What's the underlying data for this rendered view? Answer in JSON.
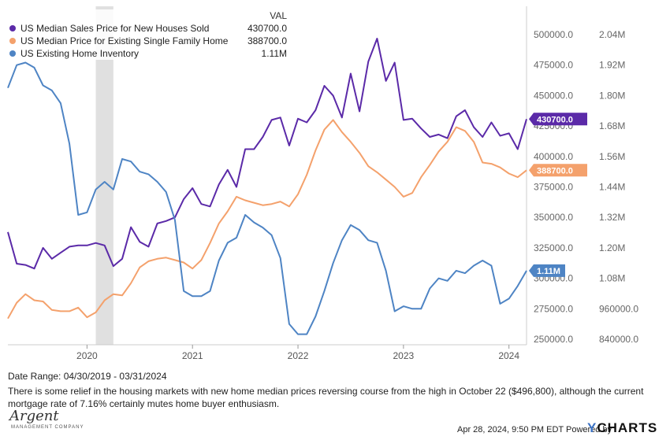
{
  "chart_data": {
    "type": "line",
    "legend": {
      "header": "VAL",
      "placement": "top-left",
      "entries": [
        {
          "name": "US Median Sales Price for New Houses Sold",
          "value": "430700.0",
          "color": "#5b2aa8"
        },
        {
          "name": "US Median Price for Existing Single Family Home",
          "value": "388700.0",
          "color": "#f4a16c"
        },
        {
          "name": "US Existing Home Inventory",
          "value": "1.11M",
          "color": "#4e84c4"
        }
      ]
    },
    "x_ticks": [
      "2020",
      "2021",
      "2022",
      "2023",
      "2024"
    ],
    "x_range": [
      "2019-04",
      "2024-03"
    ],
    "y_left": {
      "min": 250000,
      "max": 500000,
      "ticks": [
        "500000.0",
        "475000.0",
        "450000.0",
        "425000.0",
        "400000.0",
        "375000.0",
        "350000.0",
        "325000.0",
        "300000.0",
        "275000.0",
        "250000.0"
      ]
    },
    "y_right": {
      "min": 840000,
      "max": 2040000,
      "ticks": [
        "2.04M",
        "1.92M",
        "1.80M",
        "1.68M",
        "1.56M",
        "1.44M",
        "1.32M",
        "1.20M",
        "1.08M",
        "960000.0",
        "840000.0"
      ]
    },
    "shaded_region": {
      "from": "2020-02",
      "to": "2020-04"
    },
    "end_labels": {
      "new_houses": "430700.0",
      "existing_price": "388700.0",
      "inventory": "1.11M"
    },
    "series": [
      {
        "name": "US Median Sales Price for New Houses Sold",
        "axis": "left",
        "color": "#5b2aa8",
        "dates": [
          "2019-04",
          "2019-05",
          "2019-06",
          "2019-07",
          "2019-08",
          "2019-09",
          "2019-10",
          "2019-11",
          "2019-12",
          "2020-01",
          "2020-02",
          "2020-03",
          "2020-04",
          "2020-05",
          "2020-06",
          "2020-07",
          "2020-08",
          "2020-09",
          "2020-10",
          "2020-11",
          "2020-12",
          "2021-01",
          "2021-02",
          "2021-03",
          "2021-04",
          "2021-05",
          "2021-06",
          "2021-07",
          "2021-08",
          "2021-09",
          "2021-10",
          "2021-11",
          "2021-12",
          "2022-01",
          "2022-02",
          "2022-03",
          "2022-04",
          "2022-05",
          "2022-06",
          "2022-07",
          "2022-08",
          "2022-09",
          "2022-10",
          "2022-11",
          "2022-12",
          "2023-01",
          "2023-02",
          "2023-03",
          "2023-04",
          "2023-05",
          "2023-06",
          "2023-07",
          "2023-08",
          "2023-09",
          "2023-10",
          "2023-11",
          "2023-12",
          "2024-01",
          "2024-02",
          "2024-03"
        ],
        "values": [
          338000,
          312000,
          311000,
          308000,
          325000,
          316000,
          321000,
          326000,
          327000,
          327000,
          329000,
          327000,
          310000,
          316000,
          342000,
          330000,
          326000,
          345000,
          347000,
          350000,
          365000,
          374000,
          361000,
          359000,
          377000,
          389000,
          375000,
          406000,
          406000,
          416000,
          430000,
          432000,
          409000,
          431000,
          428000,
          438000,
          458000,
          450000,
          432000,
          468000,
          437000,
          478000,
          496800,
          462000,
          477000,
          430000,
          431000,
          423000,
          416000,
          418000,
          415000,
          433000,
          438000,
          424000,
          416000,
          428000,
          417000,
          419000,
          406000,
          430700
        ]
      },
      {
        "name": "US Median Price for Existing Single Family Home",
        "axis": "left",
        "color": "#f4a16c",
        "dates": [
          "2019-04",
          "2019-05",
          "2019-06",
          "2019-07",
          "2019-08",
          "2019-09",
          "2019-10",
          "2019-11",
          "2019-12",
          "2020-01",
          "2020-02",
          "2020-03",
          "2020-04",
          "2020-05",
          "2020-06",
          "2020-07",
          "2020-08",
          "2020-09",
          "2020-10",
          "2020-11",
          "2020-12",
          "2021-01",
          "2021-02",
          "2021-03",
          "2021-04",
          "2021-05",
          "2021-06",
          "2021-07",
          "2021-08",
          "2021-09",
          "2021-10",
          "2021-11",
          "2021-12",
          "2022-01",
          "2022-02",
          "2022-03",
          "2022-04",
          "2022-05",
          "2022-06",
          "2022-07",
          "2022-08",
          "2022-09",
          "2022-10",
          "2022-11",
          "2022-12",
          "2023-01",
          "2023-02",
          "2023-03",
          "2023-04",
          "2023-05",
          "2023-06",
          "2023-07",
          "2023-08",
          "2023-09",
          "2023-10",
          "2023-11",
          "2023-12",
          "2024-01",
          "2024-02",
          "2024-03"
        ],
        "values": [
          267000,
          280000,
          287000,
          282000,
          281000,
          274000,
          273000,
          273000,
          276000,
          268000,
          272000,
          282000,
          287000,
          286000,
          296000,
          309000,
          314000,
          316000,
          317000,
          315000,
          313000,
          308000,
          315000,
          329000,
          345000,
          355000,
          367000,
          364000,
          362000,
          360000,
          361000,
          363000,
          359000,
          369000,
          385000,
          405000,
          422000,
          430000,
          420000,
          412000,
          403000,
          392000,
          387000,
          381000,
          375000,
          367000,
          370000,
          383000,
          393000,
          404000,
          412000,
          424000,
          421000,
          412000,
          395000,
          394000,
          391000,
          386000,
          383000,
          388700
        ]
      },
      {
        "name": "US Existing Home Inventory",
        "axis": "right",
        "color": "#4e84c4",
        "dates": [
          "2019-04",
          "2019-05",
          "2019-06",
          "2019-07",
          "2019-08",
          "2019-09",
          "2019-10",
          "2019-11",
          "2019-12",
          "2020-01",
          "2020-02",
          "2020-03",
          "2020-04",
          "2020-05",
          "2020-06",
          "2020-07",
          "2020-08",
          "2020-09",
          "2020-10",
          "2020-11",
          "2020-12",
          "2021-01",
          "2021-02",
          "2021-03",
          "2021-04",
          "2021-05",
          "2021-06",
          "2021-07",
          "2021-08",
          "2021-09",
          "2021-10",
          "2021-11",
          "2021-12",
          "2022-01",
          "2022-02",
          "2022-03",
          "2022-04",
          "2022-05",
          "2022-06",
          "2022-07",
          "2022-08",
          "2022-09",
          "2022-10",
          "2022-11",
          "2022-12",
          "2023-01",
          "2023-02",
          "2023-03",
          "2023-04",
          "2023-05",
          "2023-06",
          "2023-07",
          "2023-08",
          "2023-09",
          "2023-10",
          "2023-11",
          "2023-12",
          "2024-01",
          "2024-02",
          "2024-03"
        ],
        "values": [
          1830000,
          1920000,
          1930000,
          1910000,
          1840000,
          1820000,
          1770000,
          1610000,
          1330000,
          1340000,
          1430000,
          1460000,
          1430000,
          1550000,
          1540000,
          1500000,
          1490000,
          1460000,
          1420000,
          1310000,
          1030000,
          1010000,
          1010000,
          1030000,
          1150000,
          1220000,
          1240000,
          1330000,
          1300000,
          1280000,
          1250000,
          1160000,
          900000,
          860000,
          860000,
          930000,
          1030000,
          1140000,
          1230000,
          1290000,
          1270000,
          1230000,
          1220000,
          1110000,
          950000,
          970000,
          960000,
          960000,
          1040000,
          1080000,
          1070000,
          1110000,
          1100000,
          1130000,
          1150000,
          1130000,
          980000,
          1000000,
          1050000,
          1110000
        ]
      }
    ]
  },
  "footer": {
    "date_range": "Date Range: 04/30/2019 - 03/31/2024",
    "note": "There is some relief in the housing markets with new home median prices reversing course from the high in October 22 ($496,800), although the current mortgage rate of 7.16% certainly mutes home buyer enthusiasm."
  },
  "logo": {
    "name": "Argent",
    "tagline": "MANAGEMENT COMPANY"
  },
  "timestamp": "Apr 28, 2024, 9:50 PM EDT Powered by",
  "brand": {
    "y": "Y",
    "rest": "CHARTS"
  }
}
